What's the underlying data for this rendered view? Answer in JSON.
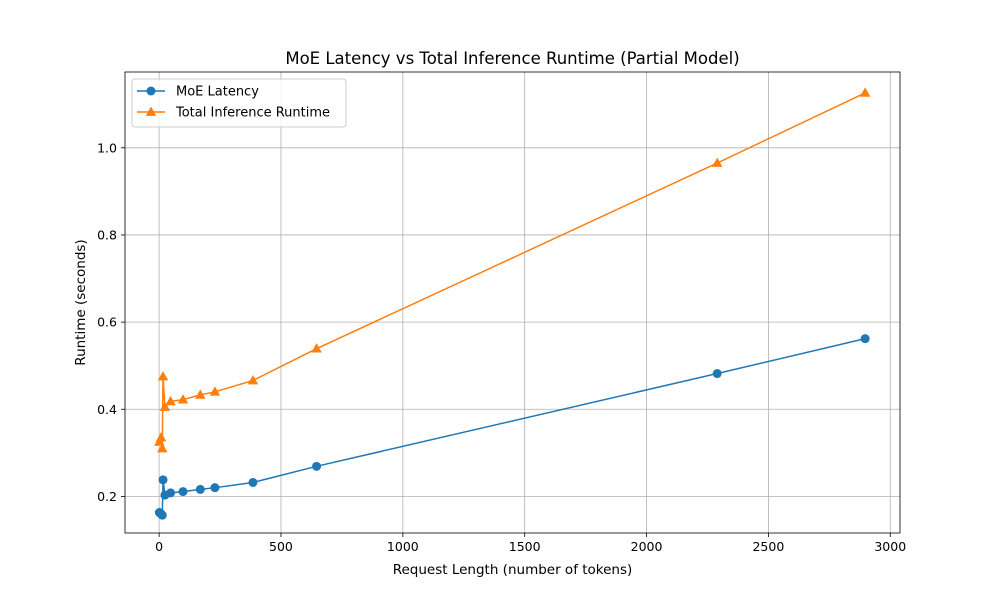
{
  "chart_data": {
    "type": "line",
    "title": "MoE Latency vs Total Inference Runtime (Partial Model)",
    "xlabel": "Request Length (number of tokens)",
    "ylabel": "Runtime (seconds)",
    "xlim": [
      -140,
      3040
    ],
    "ylim": [
      0.116,
      1.174
    ],
    "xticks": [
      0,
      500,
      1000,
      1500,
      2000,
      2500,
      3000
    ],
    "xtick_labels": [
      "0",
      "500",
      "1000",
      "1500",
      "2000",
      "2500",
      "3000"
    ],
    "yticks": [
      0.2,
      0.4,
      0.6,
      0.8,
      1.0
    ],
    "ytick_labels": [
      "0.2",
      "0.4",
      "0.6",
      "0.8",
      "1.0"
    ],
    "grid": true,
    "legend_position": "top-left",
    "series": [
      {
        "name": "MoE Latency",
        "color": "#1f77b4",
        "marker": "circle",
        "x": [
          1,
          8,
          13,
          16,
          24,
          47,
          98,
          169,
          229,
          385,
          646,
          2290,
          2897
        ],
        "y": [
          0.163,
          0.16,
          0.157,
          0.238,
          0.203,
          0.208,
          0.211,
          0.216,
          0.22,
          0.232,
          0.269,
          0.482,
          0.562
        ]
      },
      {
        "name": "Total Inference Runtime",
        "color": "#ff7f0e",
        "marker": "triangle",
        "x": [
          1,
          8,
          13,
          16,
          24,
          47,
          98,
          169,
          229,
          385,
          646,
          2290,
          2897
        ],
        "y": [
          0.325,
          0.335,
          0.31,
          0.475,
          0.405,
          0.418,
          0.422,
          0.433,
          0.44,
          0.466,
          0.539,
          0.965,
          1.126
        ]
      }
    ]
  }
}
